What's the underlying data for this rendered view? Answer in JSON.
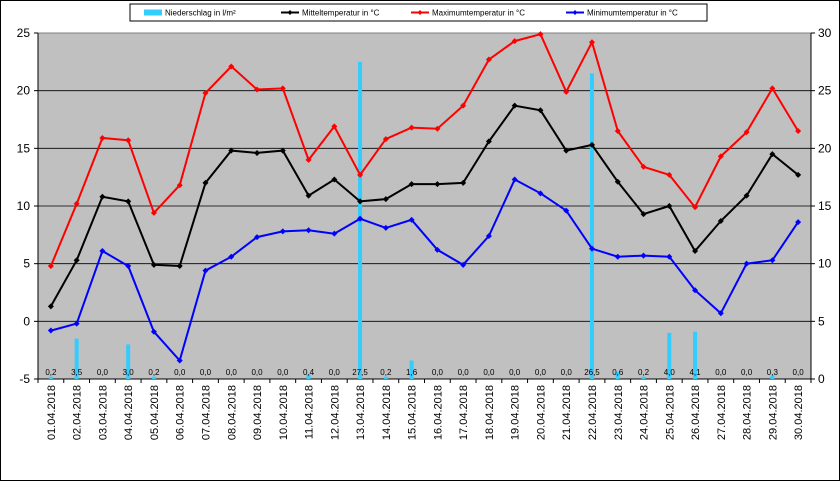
{
  "chart_data": {
    "type": "bar+line",
    "categories": [
      "01.04.2018",
      "02.04.2018",
      "03.04.2018",
      "04.04.2018",
      "05.04.2018",
      "06.04.2018",
      "07.04.2018",
      "08.04.2018",
      "09.04.2018",
      "10.04.2018",
      "11.04.2018",
      "12.04.2018",
      "13.04.2018",
      "14.04.2018",
      "15.04.2018",
      "16.04.2018",
      "17.04.2018",
      "18.04.2018",
      "19.04.2018",
      "20.04.2018",
      "21.04.2018",
      "22.04.2018",
      "23.04.2018",
      "24.04.2018",
      "25.04.2018",
      "26.04.2018",
      "27.04.2018",
      "28.04.2018",
      "29.04.2018",
      "30.04.2018"
    ],
    "y_left": {
      "min": -5,
      "max": 25,
      "ticks": [
        -5,
        0,
        5,
        10,
        15,
        20,
        25
      ]
    },
    "y_right": {
      "min": 0,
      "max": 30,
      "ticks": [
        0,
        5,
        10,
        15,
        20,
        25,
        30
      ]
    },
    "grid": true,
    "legend_position": "top",
    "series": [
      {
        "name": "Niederschlag in l/m²",
        "kind": "bar",
        "axis": "right",
        "color": "#33CCFF",
        "values": [
          0.2,
          3.5,
          0.0,
          3.0,
          0.2,
          0.0,
          0.0,
          0.0,
          0.0,
          0.0,
          0.4,
          0.0,
          27.5,
          0.2,
          1.6,
          0.0,
          0.0,
          0.0,
          0.0,
          0.0,
          0.0,
          26.5,
          0.6,
          0.2,
          4.0,
          4.1,
          0.0,
          0.0,
          0.3,
          0.0
        ],
        "labels": [
          "0,2",
          "3,5",
          "0,0",
          "3,0",
          "0,2",
          "0,0",
          "0,0",
          "0,0",
          "0,0",
          "0,0",
          "0,4",
          "0,0",
          "27,5",
          "0,2",
          "1,6",
          "0,0",
          "0,0",
          "0,0",
          "0,0",
          "0,0",
          "0,0",
          "26,5",
          "0,6",
          "0,2",
          "4,0",
          "4,1",
          "0,0",
          "0,0",
          "0,3",
          "0,0"
        ]
      },
      {
        "name": "Mitteltemperatur in °C",
        "kind": "line",
        "axis": "left",
        "color": "#000000",
        "values": [
          1.3,
          5.3,
          10.8,
          10.4,
          4.9,
          4.8,
          12.0,
          14.8,
          14.6,
          14.8,
          10.9,
          12.3,
          10.4,
          10.6,
          11.9,
          11.9,
          12.0,
          15.6,
          18.7,
          18.3,
          14.8,
          15.3,
          12.1,
          9.3,
          10.0,
          6.1,
          8.7,
          10.9,
          14.5,
          12.7
        ]
      },
      {
        "name": "Maximumtemperatur in °C",
        "kind": "line",
        "axis": "left",
        "color": "#FF0000",
        "values": [
          4.8,
          10.2,
          15.9,
          15.7,
          9.4,
          11.8,
          19.8,
          22.1,
          20.1,
          20.2,
          14.0,
          16.9,
          12.7,
          15.8,
          16.8,
          16.7,
          18.7,
          22.7,
          24.3,
          24.9,
          19.9,
          24.2,
          16.5,
          13.4,
          12.7,
          9.9,
          14.3,
          16.4,
          20.2,
          16.5
        ]
      },
      {
        "name": "Minimumtemperatur in °C",
        "kind": "line",
        "axis": "left",
        "color": "#0000FF",
        "values": [
          -0.8,
          -0.2,
          6.1,
          4.8,
          -0.9,
          -3.4,
          4.4,
          5.6,
          7.3,
          7.8,
          7.9,
          7.6,
          8.9,
          8.1,
          8.8,
          6.2,
          4.9,
          7.4,
          12.3,
          11.1,
          9.6,
          6.3,
          5.6,
          5.7,
          5.6,
          2.7,
          0.7,
          5.0,
          5.3,
          8.6
        ]
      }
    ]
  }
}
